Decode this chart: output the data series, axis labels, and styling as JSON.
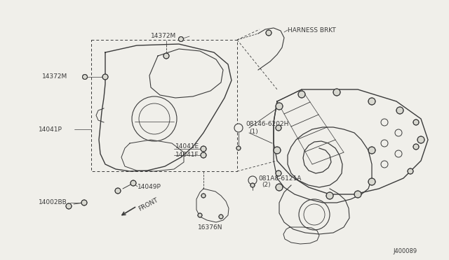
{
  "bg_color": "#f0efea",
  "line_color": "#3a3a3a",
  "diagram_id": "J400089",
  "font_size": 7,
  "small_font_size": 6.5,
  "figsize": [
    6.4,
    3.72
  ],
  "dpi": 100,
  "xlim": [
    0,
    640
  ],
  "ylim": [
    0,
    372
  ]
}
